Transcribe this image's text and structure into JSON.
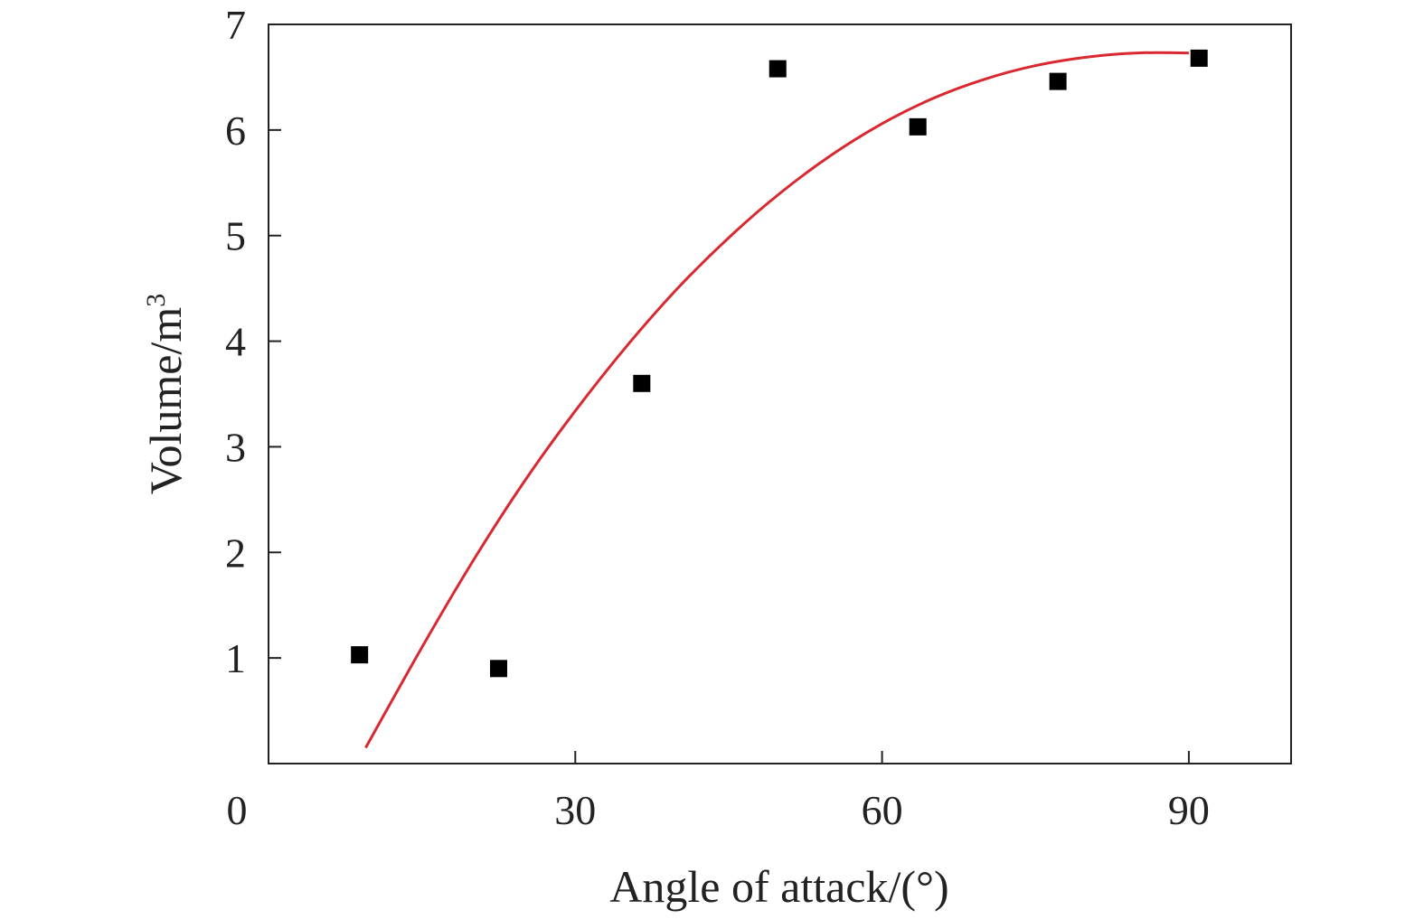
{
  "chart_data": {
    "type": "scatter",
    "xlabel": "Angle of attack/(°)",
    "ylabel_text": "Volume/m",
    "ylabel_superscript": "3",
    "xlim": [
      0,
      100
    ],
    "ylim": [
      0,
      7
    ],
    "xticks": [
      30,
      60,
      90
    ],
    "yticks": [
      1,
      2,
      3,
      4,
      5,
      6,
      7
    ],
    "origin_label": "0",
    "grid": false,
    "legend": false,
    "series": [
      {
        "kind": "points",
        "marker": "square",
        "color": "#000000",
        "x": [
          8.9,
          22.5,
          36.5,
          49.8,
          63.5,
          77.2,
          91
        ],
        "y": [
          1.03,
          0.9,
          3.6,
          6.58,
          6.03,
          6.46,
          6.68
        ]
      },
      {
        "kind": "fitted-curve",
        "color": "#d9282f",
        "x": [
          9.5,
          15,
          20,
          25,
          30,
          35,
          40,
          45,
          50,
          55,
          60,
          65,
          70,
          75,
          80,
          85,
          90
        ],
        "y": [
          0.15,
          1.1,
          1.92,
          2.67,
          3.34,
          3.95,
          4.5,
          4.98,
          5.4,
          5.76,
          6.06,
          6.3,
          6.48,
          6.61,
          6.69,
          6.73,
          6.73
        ]
      }
    ]
  }
}
